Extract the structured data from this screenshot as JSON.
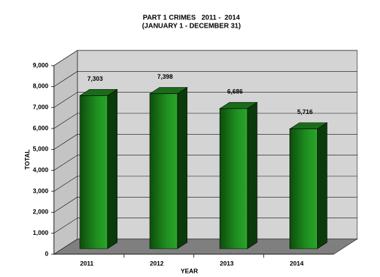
{
  "chart_data": {
    "type": "bar3d",
    "title": "PART 1 CRIMES   2011 -  2014",
    "subtitle": "(JANUARY 1 - DECEMBER 31)",
    "x_label": "YEAR",
    "y_label": "TOTAL",
    "categories": [
      "2011",
      "2012",
      "2013",
      "2014"
    ],
    "values": [
      7303,
      7398,
      6686,
      5716
    ],
    "value_labels": [
      "7,303",
      "7,398",
      "6,686",
      "5,716"
    ],
    "color": "#1f8f1f",
    "ylim": [
      0,
      9000
    ],
    "yticks": [
      0,
      {
        "value": 1000,
        "label": "1,000"
      },
      {
        "value": 2000,
        "label": "2,000"
      },
      {
        "value": 3000,
        "label": "3,000"
      },
      {
        "value": 4000,
        "label": "4,000"
      },
      {
        "value": 5000,
        "label": "5,000"
      },
      {
        "value": 6000,
        "label": "6,000"
      },
      {
        "value": 7000,
        "label": "7,000"
      },
      {
        "value": 8000,
        "label": "8,000"
      },
      {
        "value": 9000,
        "label": "9,000"
      }
    ],
    "grid": true
  }
}
